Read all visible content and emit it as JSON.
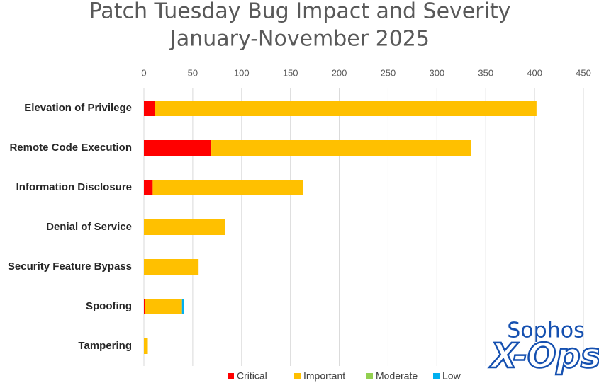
{
  "chart_data": {
    "type": "stacked-barh",
    "title": "Patch Tuesday Bug Impact and Severity",
    "subtitle": "January-November 2025",
    "categories": [
      "Elevation of Privilege",
      "Remote Code Execution",
      "Information Disclosure",
      "Denial of Service",
      "Security Feature Bypass",
      "Spoofing",
      "Tampering"
    ],
    "series": [
      {
        "name": "Critical",
        "color": "#ff0000",
        "values": [
          11,
          69,
          9,
          0,
          0,
          1,
          0
        ]
      },
      {
        "name": "Important",
        "color": "#ffc000",
        "values": [
          391,
          266,
          154,
          83,
          56,
          38,
          4
        ]
      },
      {
        "name": "Moderate",
        "color": "#92d050",
        "values": [
          0,
          0,
          0,
          0,
          0,
          0,
          0
        ]
      },
      {
        "name": "Low",
        "color": "#00b0f0",
        "values": [
          0,
          0,
          0,
          0,
          0,
          2,
          0
        ]
      }
    ],
    "xlim": [
      0,
      450
    ],
    "xticks": [
      0,
      50,
      100,
      150,
      200,
      250,
      300,
      350,
      400,
      450
    ],
    "grid": true,
    "legend": "bottom",
    "logo": {
      "line1": "Sophos",
      "line2": "X-Ops"
    }
  }
}
